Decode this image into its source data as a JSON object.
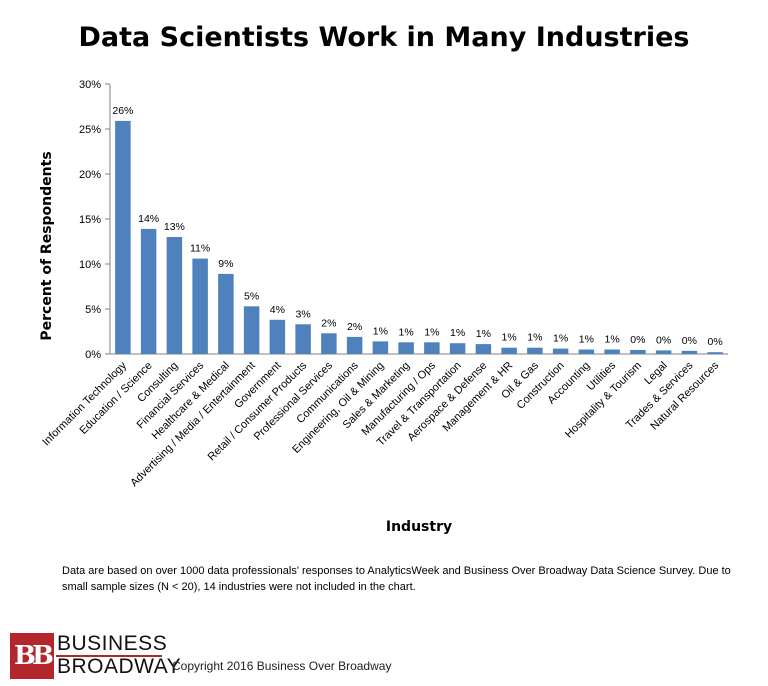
{
  "chart_data": {
    "type": "bar",
    "title": "Data Scientists Work in Many Industries",
    "xlabel": "Industry",
    "ylabel": "Percent of Respondents",
    "ylim": [
      0,
      30
    ],
    "yticks": [
      "0%",
      "5%",
      "10%",
      "15%",
      "20%",
      "25%",
      "30%"
    ],
    "categories": [
      "Information Technology",
      "Education / Science",
      "Consulting",
      "Financial Services",
      "Healthcare & Medical",
      "Advertising / Media / Entertainment",
      "Government",
      "Retail / Consumer Products",
      "Professional Services",
      "Communications",
      "Engineering, Oil & Mining",
      "Sales & Marketing",
      "Manufacturing / Ops",
      "Travel & Transportation",
      "Aerospace & Defense",
      "Management & HR",
      "Oil & Gas",
      "Construction",
      "Accounting",
      "Utilities",
      "Hospitality & Tourism",
      "Legal",
      "Trades & Services",
      "Natural Resources"
    ],
    "values": [
      25.9,
      13.9,
      13.0,
      10.6,
      8.9,
      5.3,
      3.8,
      3.3,
      2.3,
      1.9,
      1.4,
      1.3,
      1.3,
      1.2,
      1.1,
      0.7,
      0.7,
      0.6,
      0.5,
      0.5,
      0.45,
      0.4,
      0.35,
      0.2
    ],
    "labels": [
      "26%",
      "14%",
      "13%",
      "11%",
      "9%",
      "5%",
      "4%",
      "3%",
      "2%",
      "2%",
      "1%",
      "1%",
      "1%",
      "1%",
      "1%",
      "1%",
      "1%",
      "1%",
      "1%",
      "1%",
      "0%",
      "0%",
      "0%",
      "0%"
    ],
    "bar_color": "#4f81bd",
    "grid": false,
    "legend": "none"
  },
  "footnote": "Data are based on over 1000 data professionals' responses to AnalyticsWeek and Business Over Broadway Data Science Survey. Due to small sample sizes (N < 20), 14 industries were not included in the chart.",
  "logo": {
    "mark": "BB",
    "line1": "BUSINESS",
    "line2": "BROADWAY"
  },
  "copyright": "Copyright 2016 Business Over Broadway"
}
